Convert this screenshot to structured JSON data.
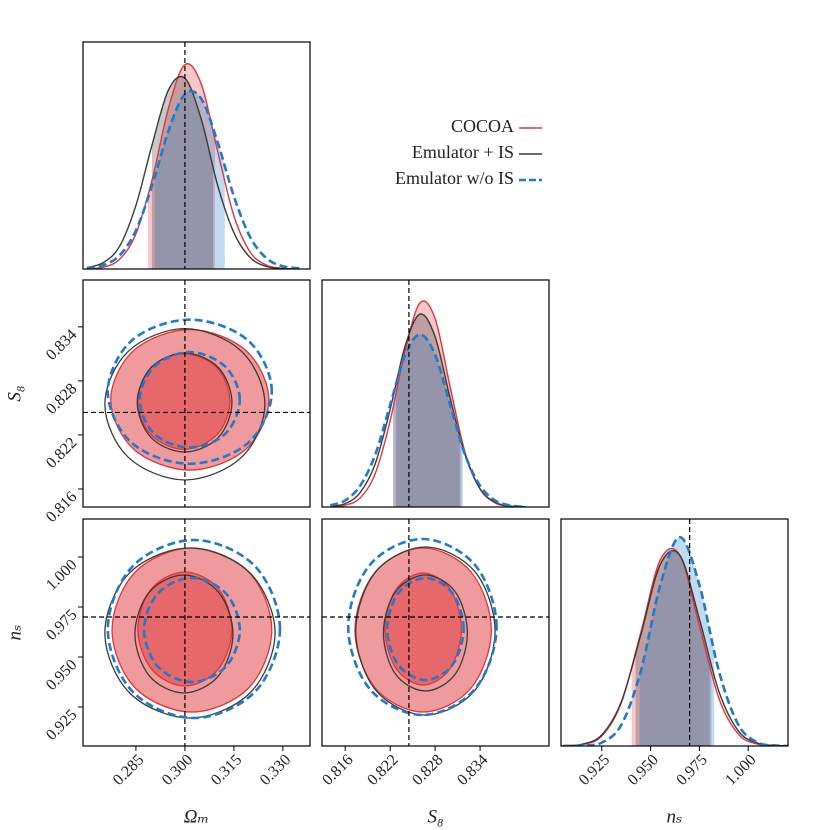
{
  "chart_data": [
    {
      "type": "line",
      "xlim": [
        0.2688,
        0.3383
      ],
      "ylim": [
        0,
        1
      ],
      "truth_x": 0.3,
      "x": [
        0.27,
        0.275,
        0.28,
        0.285,
        0.29,
        0.295,
        0.3,
        0.305,
        0.31,
        0.315,
        0.32,
        0.325,
        0.33,
        0.335
      ],
      "series": [
        {
          "name": "COCOA",
          "color": "#e0353a",
          "band": [
            0.2887,
            0.3092
          ],
          "values": [
            0.001,
            0.008,
            0.043,
            0.155,
            0.395,
            0.71,
            0.9,
            0.815,
            0.52,
            0.234,
            0.074,
            0.017,
            0.003,
            0
          ]
        },
        {
          "name": "Emulator + IS",
          "color": "#3a3a3a",
          "band": [
            0.2899,
            0.3086
          ],
          "values": [
            0.006,
            0.028,
            0.1,
            0.28,
            0.55,
            0.79,
            0.84,
            0.66,
            0.37,
            0.16,
            0.05,
            0.011,
            0.002,
            0
          ]
        },
        {
          "name": "Emulator w/o IS",
          "color": "#1f7ac9",
          "dashed": true,
          "band": [
            0.2908,
            0.3122
          ],
          "values": [
            0.003,
            0.017,
            0.06,
            0.17,
            0.37,
            0.61,
            0.77,
            0.75,
            0.56,
            0.32,
            0.14,
            0.047,
            0.012,
            0.003
          ]
        }
      ]
    },
    {
      "type": "contour",
      "y_label": "S₈",
      "xlim": [
        0.2688,
        0.3383
      ],
      "ylim": [
        0.814,
        0.8392
      ],
      "yticks": [
        0.816,
        0.822,
        0.828,
        0.834
      ],
      "truth_x": 0.3,
      "truth_y": 0.8245,
      "series": [
        {
          "color": "#e0353a",
          "filled": true,
          "contours": [
            {
              "x": [
                0.3257,
                0.3186,
                0.3015,
                0.2844,
                0.2773,
                0.2844,
                0.3015,
                0.3186
              ],
              "y": [
                0.8259,
                0.8314,
                0.8337,
                0.8314,
                0.8259,
                0.8204,
                0.8181,
                0.8204
              ]
            },
            {
              "x": [
                0.3138,
                0.3097,
                0.2997,
                0.2897,
                0.2856,
                0.2897,
                0.2997,
                0.3097
              ],
              "y": [
                0.8257,
                0.8295,
                0.831,
                0.8295,
                0.8257,
                0.822,
                0.8204,
                0.822
              ]
            }
          ]
        },
        {
          "color": "#3a3a3a",
          "contours": [
            {
              "x": [
                0.3245,
                0.3173,
                0.3,
                0.2827,
                0.2755,
                0.2827,
                0.3,
                0.3173
              ],
              "y": [
                0.8254,
                0.8313,
                0.8338,
                0.8313,
                0.8254,
                0.8195,
                0.817,
                0.8195
              ]
            },
            {
              "x": [
                0.3144,
                0.3102,
                0.2999,
                0.2897,
                0.2854,
                0.2897,
                0.2999,
                0.3102
              ],
              "y": [
                0.8256,
                0.8295,
                0.8311,
                0.8295,
                0.8256,
                0.8217,
                0.8201,
                0.8217
              ]
            }
          ]
        },
        {
          "color": "#1f7ac9",
          "dashed": true,
          "contours": [
            {
              "x": [
                0.3266,
                0.3193,
                0.3015,
                0.2838,
                0.2764,
                0.2838,
                0.3015,
                0.3193
              ],
              "y": [
                0.8268,
                0.8325,
                0.8348,
                0.8325,
                0.8268,
                0.8211,
                0.8188,
                0.8211
              ]
            },
            {
              "x": [
                0.3168,
                0.3123,
                0.3015,
                0.2907,
                0.2862,
                0.2907,
                0.3015,
                0.3123
              ],
              "y": [
                0.8259,
                0.8296,
                0.8312,
                0.8296,
                0.8259,
                0.8221,
                0.8206,
                0.8221
              ]
            }
          ]
        }
      ]
    },
    {
      "type": "line",
      "xlim": [
        0.8129,
        0.8432
      ],
      "ylim": [
        0,
        1
      ],
      "truth_x": 0.8245,
      "x": [
        0.814,
        0.816,
        0.818,
        0.82,
        0.822,
        0.824,
        0.826,
        0.828,
        0.83,
        0.832,
        0.834,
        0.836,
        0.838,
        0.84
      ],
      "series": [
        {
          "color": "#e0353a",
          "band": [
            0.8224,
            0.8315
          ],
          "values": [
            0.001,
            0.008,
            0.04,
            0.147,
            0.38,
            0.69,
            0.9,
            0.83,
            0.53,
            0.24,
            0.08,
            0.018,
            0.003,
            0
          ]
        },
        {
          "color": "#3a3a3a",
          "band": [
            0.8228,
            0.8313
          ],
          "values": [
            0.003,
            0.015,
            0.064,
            0.19,
            0.43,
            0.71,
            0.85,
            0.75,
            0.48,
            0.23,
            0.08,
            0.021,
            0.004,
            0.001
          ]
        },
        {
          "color": "#1f7ac9",
          "dashed": true,
          "band": [
            0.8224,
            0.8317
          ],
          "values": [
            0.007,
            0.029,
            0.094,
            0.23,
            0.45,
            0.67,
            0.76,
            0.67,
            0.45,
            0.23,
            0.094,
            0.029,
            0.007,
            0.001
          ]
        }
      ]
    },
    {
      "type": "contour",
      "x_label": "Ωₘ",
      "y_label": "nₛ",
      "xlim": [
        0.2688,
        0.3383
      ],
      "ylim": [
        0.9055,
        1.019
      ],
      "xticks": [
        0.285,
        {
          "value": 0.3,
          "label": "0.300"
        },
        0.315,
        {
          "value": 0.33,
          "label": "0.330"
        }
      ],
      "yticks": [
        0.925,
        {
          "value": 0.95,
          "label": "0.950"
        },
        0.975,
        {
          "value": 1,
          "label": "1.000"
        }
      ],
      "truth_x": 0.3,
      "truth_y": 0.97,
      "series": [
        {
          "color": "#e0353a",
          "filled": true,
          "contours": [
            {
              "x": [
                0.3266,
                0.3195,
                0.3021,
                0.2848,
                0.2777,
                0.2848,
                0.3021,
                0.3195
              ],
              "y": [
                0.9635,
                0.9925,
                1.0045,
                0.9925,
                0.9635,
                0.9345,
                0.9225,
                0.9345
              ]
            },
            {
              "x": [
                0.3144,
                0.3102,
                0.3,
                0.2898,
                0.2856,
                0.2898,
                0.3,
                0.3102
              ],
              "y": [
                0.964,
                0.9842,
                0.9925,
                0.9842,
                0.964,
                0.9439,
                0.9355,
                0.9439
              ]
            }
          ]
        },
        {
          "color": "#3a3a3a",
          "contours": [
            {
              "x": [
                0.3276,
                0.3199,
                0.3015,
                0.2831,
                0.2755,
                0.2831,
                0.3015,
                0.3199
              ],
              "y": [
                0.962,
                0.9921,
                1.0045,
                0.9921,
                0.962,
                0.932,
                0.9195,
                0.932
              ]
            },
            {
              "x": [
                0.3147,
                0.3103,
                0.2997,
                0.2891,
                0.2847,
                0.2891,
                0.2997,
                0.3103
              ],
              "y": [
                0.9615,
                0.9824,
                0.991,
                0.9824,
                0.9615,
                0.9406,
                0.932,
                0.9406
              ]
            }
          ]
        },
        {
          "color": "#1f7ac9",
          "dashed": true,
          "contours": [
            {
              "x": [
                0.3291,
                0.3214,
                0.3028,
                0.2841,
                0.2764,
                0.2841,
                0.3028,
                0.3214
              ],
              "y": [
                0.964,
                0.9955,
                1.0085,
                0.9955,
                0.964,
                0.9325,
                0.9195,
                0.9325
              ]
            },
            {
              "x": [
                0.3168,
                0.3125,
                0.3021,
                0.2918,
                0.2875,
                0.2918,
                0.3021,
                0.3125
              ],
              "y": [
                0.9635,
                0.9819,
                0.9895,
                0.9819,
                0.9635,
                0.9451,
                0.9375,
                0.9451
              ]
            }
          ]
        }
      ]
    },
    {
      "type": "contour",
      "x_label": "S₈",
      "xlim": [
        0.8129,
        0.8432
      ],
      "ylim": [
        0.9055,
        1.019
      ],
      "xticks": [
        0.816,
        0.822,
        0.828,
        0.834
      ],
      "truth_x": 0.8245,
      "truth_y": 0.97,
      "series": [
        {
          "color": "#e0353a",
          "filled": true,
          "contours": [
            {
              "x": [
                0.8355,
                0.8328,
                0.8264,
                0.82,
                0.8173,
                0.82,
                0.8264,
                0.8328
              ],
              "y": [
                0.9635,
                0.9925,
                1.0045,
                0.9925,
                0.9635,
                0.9345,
                0.9225,
                0.9345
              ]
            },
            {
              "x": [
                0.8315,
                0.83,
                0.8264,
                0.8228,
                0.8213,
                0.8228,
                0.8264,
                0.83
              ],
              "y": [
                0.964,
                0.9838,
                0.992,
                0.9838,
                0.964,
                0.9442,
                0.936,
                0.9442
              ]
            }
          ]
        },
        {
          "color": "#3a3a3a",
          "contours": [
            {
              "x": [
                0.836,
                0.8333,
                0.8267,
                0.8201,
                0.8174,
                0.8201,
                0.8267,
                0.8333
              ],
              "y": [
                0.963,
                0.9927,
                1.005,
                0.9927,
                0.963,
                0.9333,
                0.921,
                0.9333
              ]
            },
            {
              "x": [
                0.8323,
                0.8307,
                0.8267,
                0.8227,
                0.8211,
                0.8227,
                0.8267,
                0.8307
              ],
              "y": [
                0.962,
                0.9825,
                0.991,
                0.9825,
                0.962,
                0.9415,
                0.933,
                0.9415
              ]
            }
          ]
        },
        {
          "color": "#1f7ac9",
          "dashed": true,
          "contours": [
            {
              "x": [
                0.8362,
                0.8333,
                0.8263,
                0.8193,
                0.8164,
                0.8193,
                0.8263,
                0.8333
              ],
              "y": [
                0.965,
                0.9961,
                1.009,
                0.9961,
                0.965,
                0.9339,
                0.921,
                0.9339
              ]
            },
            {
              "x": [
                0.8318,
                0.8303,
                0.8267,
                0.8231,
                0.8216,
                0.8231,
                0.8267,
                0.8303
              ],
              "y": [
                0.964,
                0.982,
                0.9895,
                0.982,
                0.964,
                0.946,
                0.9385,
                0.946
              ]
            }
          ]
        }
      ]
    },
    {
      "type": "line",
      "x_label": "nₛ",
      "xlim": [
        0.9041,
        1.0204
      ],
      "ylim": [
        0,
        1
      ],
      "truth_x": 0.97,
      "xticks": [
        0.925,
        {
          "value": 0.95,
          "label": "0.950"
        },
        0.975,
        {
          "value": 1,
          "label": "1.000"
        }
      ],
      "x": [
        0.905,
        0.915,
        0.925,
        0.935,
        0.945,
        0.955,
        0.965,
        0.975,
        0.985,
        0.995,
        1.005,
        1.015,
        1.025
      ],
      "series": [
        {
          "color": "#e0353a",
          "band": [
            0.9403,
            0.9801
          ],
          "values": [
            0,
            0.006,
            0.044,
            0.19,
            0.5,
            0.82,
            0.84,
            0.53,
            0.21,
            0.052,
            0.008,
            0.001,
            0
          ]
        },
        {
          "color": "#3a3a3a",
          "band": [
            0.9423,
            0.9811
          ],
          "values": [
            0.001,
            0.008,
            0.049,
            0.195,
            0.49,
            0.8,
            0.84,
            0.56,
            0.24,
            0.066,
            0.012,
            0.002,
            0
          ]
        },
        {
          "color": "#1f7ac9",
          "dashed": true,
          "band": [
            0.9444,
            0.9826
          ],
          "values": [
            0,
            0.002,
            0.015,
            0.093,
            0.33,
            0.71,
            0.92,
            0.71,
            0.33,
            0.093,
            0.015,
            0.002,
            0
          ]
        }
      ]
    }
  ]
}
